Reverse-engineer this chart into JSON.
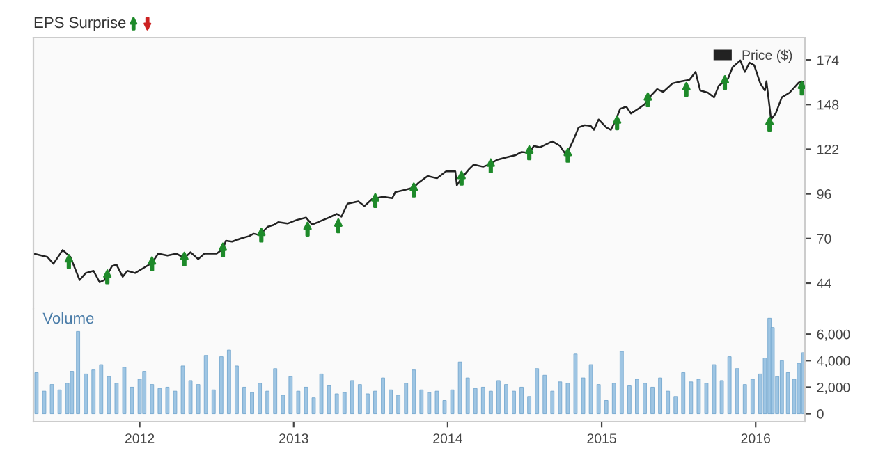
{
  "chart_data": [
    {
      "type": "line",
      "title": "EPS Surprise",
      "legend": "top right",
      "tick_labels": "y",
      "grid": false,
      "xlim": [
        2011.31,
        2016.32
      ],
      "ylim": [
        29,
        187
      ],
      "yticks": [
        44,
        70,
        96,
        122,
        148,
        174
      ],
      "series": [
        {
          "name": "Price ($)",
          "color": "#222222",
          "x": [
            2011.31,
            2011.4,
            2011.44,
            2011.5,
            2011.55,
            2011.61,
            2011.65,
            2011.7,
            2011.74,
            2011.77,
            2011.82,
            2011.85,
            2011.89,
            2011.92,
            2011.97,
            2012.03,
            2012.08,
            2012.12,
            2012.18,
            2012.24,
            2012.29,
            2012.33,
            2012.38,
            2012.42,
            2012.5,
            2012.54,
            2012.56,
            2012.6,
            2012.66,
            2012.71,
            2012.74,
            2012.78,
            2012.83,
            2012.87,
            2012.9,
            2012.96,
            2013.02,
            2013.08,
            2013.12,
            2013.17,
            2013.23,
            2013.28,
            2013.31,
            2013.35,
            2013.42,
            2013.46,
            2013.51,
            2013.58,
            2013.64,
            2013.66,
            2013.72,
            2013.78,
            2013.81,
            2013.87,
            2013.93,
            2013.99,
            2014.05,
            2014.06,
            2014.09,
            2014.14,
            2014.17,
            2014.23,
            2014.27,
            2014.32,
            2014.38,
            2014.44,
            2014.48,
            2014.53,
            2014.56,
            2014.6,
            2014.68,
            2014.73,
            2014.77,
            2014.82,
            2014.85,
            2014.89,
            2014.93,
            2014.95,
            2014.98,
            2015.03,
            2015.06,
            2015.09,
            2015.12,
            2015.16,
            2015.19,
            2015.25,
            2015.28,
            2015.31,
            2015.36,
            2015.4,
            2015.46,
            2015.52,
            2015.57,
            2015.61,
            2015.64,
            2015.69,
            2015.73,
            2015.76,
            2015.82,
            2015.85,
            2015.9,
            2015.93,
            2015.96,
            2015.99,
            2016.03,
            2016.06,
            2016.07,
            2016.1,
            2016.13,
            2016.17,
            2016.22,
            2016.28,
            2016.32
          ],
          "values": [
            61.2,
            59.3,
            55.3,
            63.3,
            59.3,
            45.8,
            49.9,
            51.2,
            44.5,
            45.8,
            53.9,
            54.7,
            47.7,
            51.2,
            49.9,
            53.1,
            55.8,
            61.2,
            60.1,
            61.2,
            58.5,
            62.0,
            58.0,
            61.2,
            61.2,
            63.9,
            68.7,
            68.2,
            70.1,
            71.4,
            72.8,
            72.0,
            76.8,
            77.9,
            79.5,
            78.7,
            80.8,
            82.2,
            78.1,
            80.0,
            82.2,
            84.3,
            82.7,
            90.3,
            91.6,
            88.9,
            93.0,
            94.3,
            93.5,
            97.0,
            98.3,
            99.7,
            102.4,
            106.4,
            105.1,
            109.1,
            109.1,
            101.0,
            105.1,
            110.5,
            113.1,
            111.8,
            113.1,
            115.8,
            117.2,
            118.5,
            120.4,
            119.9,
            123.9,
            123.1,
            126.6,
            123.9,
            118.5,
            128.0,
            134.7,
            136.0,
            135.5,
            133.3,
            139.3,
            134.7,
            133.3,
            138.7,
            145.5,
            146.8,
            142.8,
            146.3,
            148.2,
            152.2,
            157.0,
            155.4,
            160.3,
            161.6,
            162.4,
            167.0,
            156.2,
            154.9,
            152.2,
            158.9,
            163.0,
            169.7,
            173.7,
            167.0,
            172.4,
            171.0,
            160.3,
            156.2,
            161.6,
            139.3,
            142.8,
            152.2,
            154.9,
            160.8,
            161.6
          ]
        },
        {
          "type": "scatter",
          "color": "#1e8a2a",
          "x": [
            2011.54,
            2011.79,
            2012.08,
            2012.29,
            2012.54,
            2012.79,
            2013.09,
            2013.29,
            2013.53,
            2013.78,
            2014.09,
            2014.28,
            2014.53,
            2014.78,
            2015.1,
            2015.3,
            2015.55,
            2015.8,
            2016.09,
            2016.3
          ],
          "values": [
            56.6,
            47.7,
            55.3,
            58.0,
            63.3,
            72.0,
            75.5,
            77.4,
            92.1,
            98.3,
            105.1,
            112.3,
            119.9,
            118.5,
            137.4,
            150.8,
            156.8,
            160.8,
            136.6,
            157.6
          ]
        }
      ]
    },
    {
      "type": "bar",
      "title": "Volume",
      "grid": false,
      "color": "#9ec5e3",
      "xlim": [
        2011.31,
        2016.32
      ],
      "xticks": [
        2012,
        2013,
        2014,
        2015,
        2016
      ],
      "ylim": [
        -600,
        7900
      ],
      "yticks": [
        0,
        {
          "value": 2000,
          "label": "2,000"
        },
        {
          "value": 4000,
          "label": "4,000"
        },
        {
          "value": 6000,
          "label": "6,000"
        }
      ],
      "x": [
        2011.33,
        2011.38,
        2011.43,
        2011.48,
        2011.53,
        2011.56,
        2011.6,
        2011.65,
        2011.7,
        2011.75,
        2011.8,
        2011.85,
        2011.9,
        2011.95,
        2012.0,
        2012.03,
        2012.08,
        2012.13,
        2012.18,
        2012.23,
        2012.28,
        2012.33,
        2012.38,
        2012.43,
        2012.48,
        2012.53,
        2012.58,
        2012.63,
        2012.68,
        2012.73,
        2012.78,
        2012.83,
        2012.88,
        2012.93,
        2012.98,
        2013.03,
        2013.08,
        2013.13,
        2013.18,
        2013.23,
        2013.28,
        2013.33,
        2013.38,
        2013.43,
        2013.48,
        2013.53,
        2013.58,
        2013.63,
        2013.68,
        2013.73,
        2013.78,
        2013.83,
        2013.88,
        2013.93,
        2013.98,
        2014.03,
        2014.08,
        2014.13,
        2014.18,
        2014.23,
        2014.28,
        2014.33,
        2014.38,
        2014.43,
        2014.48,
        2014.53,
        2014.58,
        2014.63,
        2014.68,
        2014.73,
        2014.78,
        2014.83,
        2014.88,
        2014.93,
        2014.98,
        2015.03,
        2015.08,
        2015.13,
        2015.18,
        2015.23,
        2015.28,
        2015.33,
        2015.38,
        2015.43,
        2015.48,
        2015.53,
        2015.58,
        2015.63,
        2015.68,
        2015.73,
        2015.78,
        2015.83,
        2015.88,
        2015.93,
        2015.98,
        2016.03,
        2016.06,
        2016.09,
        2016.11,
        2016.14,
        2016.17,
        2016.21,
        2016.25,
        2016.28,
        2016.31
      ],
      "values": [
        3100,
        1700,
        2200,
        1800,
        2300,
        3200,
        6200,
        3000,
        3300,
        3700,
        2800,
        2300,
        3500,
        2000,
        2600,
        3200,
        2200,
        1900,
        2000,
        1700,
        3600,
        2500,
        2200,
        4400,
        1800,
        4300,
        4800,
        3600,
        2000,
        1600,
        2300,
        1700,
        3400,
        1400,
        2800,
        1700,
        2000,
        1200,
        3000,
        2100,
        1500,
        1600,
        2500,
        2200,
        1500,
        1700,
        2700,
        1800,
        1400,
        2300,
        3300,
        1800,
        1600,
        1700,
        1000,
        1800,
        3900,
        2700,
        1900,
        2000,
        1700,
        2500,
        2200,
        1700,
        2000,
        1300,
        3400,
        2900,
        1700,
        2400,
        2300,
        4500,
        2700,
        3700,
        2200,
        1000,
        2300,
        4700,
        2100,
        2600,
        2300,
        2000,
        2700,
        1700,
        1300,
        3100,
        2400,
        2600,
        2300,
        3700,
        2500,
        4300,
        3400,
        2200,
        2600,
        3000,
        4200,
        7200,
        6500,
        2800,
        4000,
        3100,
        2600,
        3800,
        4600
      ]
    }
  ]
}
